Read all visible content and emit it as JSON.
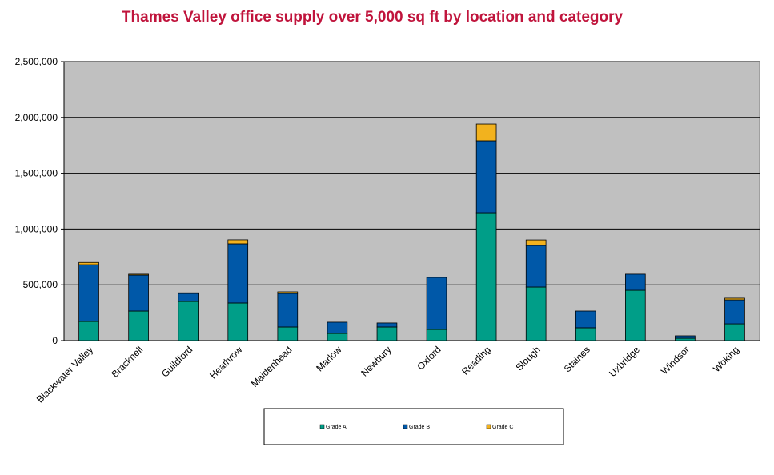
{
  "chart_data": {
    "type": "stacked-bar",
    "title": "Thames Valley office supply over 5,000 sq ft by location and category",
    "categories": [
      "Blackwater Valley",
      "Bracknell",
      "Guildford",
      "Heathrow",
      "Maidenhead",
      "Marlow",
      "Newbury",
      "Oxford",
      "Reading",
      "Slough",
      "Staines",
      "Uxbridge",
      "Windsor",
      "Woking"
    ],
    "series": [
      {
        "name": "Grade A",
        "color": "#009e88",
        "values": [
          172000,
          265000,
          351000,
          337000,
          122000,
          64000,
          122000,
          100000,
          1146000,
          480000,
          115000,
          451000,
          21000,
          150000
        ]
      },
      {
        "name": "Grade B",
        "color": "#0058a8",
        "values": [
          508000,
          322000,
          72000,
          530000,
          301000,
          101000,
          36000,
          466000,
          645000,
          372000,
          150000,
          144000,
          22000,
          215000
        ]
      },
      {
        "name": "Grade C",
        "color": "#f2b21e",
        "values": [
          20000,
          8000,
          5000,
          36000,
          14000,
          0,
          0,
          0,
          150000,
          50000,
          0,
          0,
          0,
          15000
        ]
      }
    ],
    "ylim": [
      0,
      2500000
    ],
    "yticks": [
      0,
      {
        "value": 500000,
        "label": "500,000"
      },
      {
        "value": 1000000,
        "label": "1,000,000"
      },
      {
        "value": 1500000,
        "label": "1,500,000"
      },
      {
        "value": 2000000,
        "label": "2,000,000"
      },
      {
        "value": 2500000,
        "label": "2,500,000"
      }
    ],
    "grid": true
  }
}
